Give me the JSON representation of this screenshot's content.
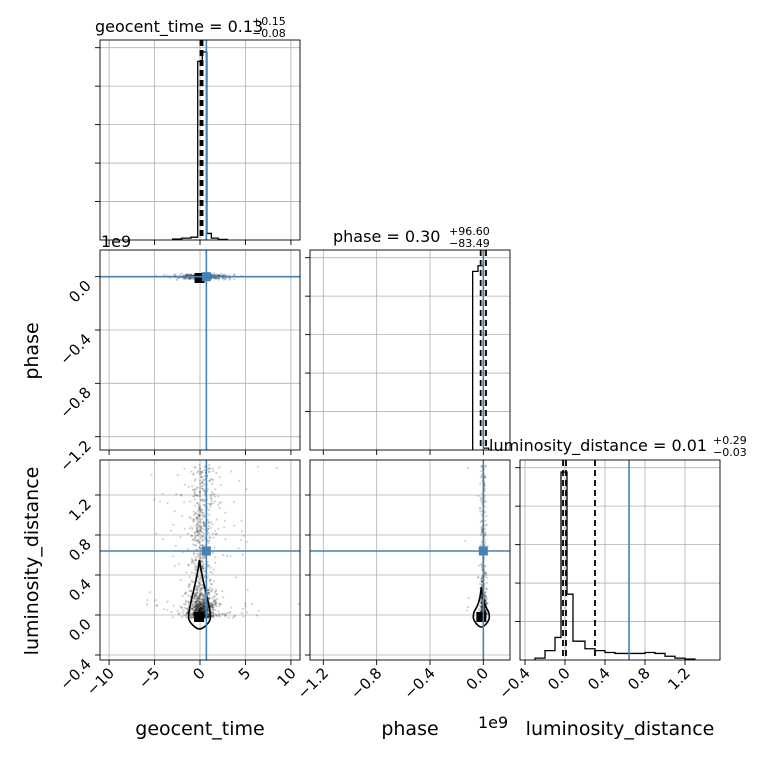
{
  "chart_data": {
    "type": "corner",
    "parameters": [
      "geocent_time",
      "phase",
      "luminosity_distance"
    ],
    "truth_color": "#4682b4",
    "titles": [
      {
        "param": "geocent_time",
        "label": "geocent_time = 0.13",
        "plus": "+0.15",
        "minus": "−0.08"
      },
      {
        "param": "phase",
        "label": "phase = 0.30",
        "plus": "+96.60",
        "minus": "−83.49"
      },
      {
        "param": "luminosity_distance",
        "label": "luminosity_distance = 0.01",
        "plus": "+0.29",
        "minus": "−0.03"
      }
    ],
    "offset_labels": {
      "phase_y": "1e9",
      "phase_x": "1e9"
    },
    "axes": {
      "geocent_time": {
        "range": [
          -11,
          11
        ],
        "ticks": [
          -10,
          -5,
          0,
          5,
          10
        ],
        "tick_labels": [
          "−10",
          "−5",
          "0",
          "5",
          "10"
        ]
      },
      "phase": {
        "range": [
          -1.3,
          0.2
        ],
        "ticks": [
          -1.2,
          -0.8,
          -0.4,
          0.0
        ],
        "tick_labels": [
          "−1.2",
          "−0.8",
          "−0.4",
          "0.0"
        ]
      },
      "luminosity_distance": {
        "range": [
          -0.45,
          1.55
        ],
        "ticks": [
          -0.4,
          0.0,
          0.4,
          0.8,
          1.2
        ],
        "tick_labels": [
          "−0.4",
          "0.0",
          "0.4",
          "0.8",
          "1.2"
        ]
      }
    },
    "truths": {
      "geocent_time": 0.7,
      "phase": 0.0,
      "luminosity_distance": 0.64
    },
    "quantiles": {
      "geocent_time": [
        0.05,
        0.13,
        0.28
      ],
      "phase": [
        -0.02,
        0.0,
        0.02
      ],
      "luminosity_distance": [
        -0.02,
        0.01,
        0.3
      ]
    },
    "histograms": {
      "geocent_time": {
        "bins": [
          -3,
          -2,
          -1,
          -0.25,
          0.25,
          0.75,
          1.25,
          2,
          3
        ],
        "heights": [
          0.005,
          0.01,
          0.015,
          0.95,
          1.0,
          0.035,
          0.01,
          0.003
        ]
      },
      "phase": {
        "bins": [
          -0.08,
          -0.04,
          0.0,
          0.04
        ],
        "heights": [
          0.95,
          0.98,
          0.01
        ]
      },
      "luminosity_distance": {
        "bins": [
          -0.3,
          -0.2,
          -0.1,
          -0.04,
          0.02,
          0.08,
          0.2,
          0.3,
          0.4,
          0.5,
          0.6,
          0.7,
          0.8,
          0.9,
          1.0,
          1.1,
          1.2,
          1.3
        ],
        "heights": [
          0.01,
          0.05,
          0.12,
          1.0,
          0.35,
          0.1,
          0.06,
          0.05,
          0.04,
          0.035,
          0.035,
          0.035,
          0.04,
          0.035,
          0.02,
          0.01,
          0.005
        ]
      }
    }
  }
}
